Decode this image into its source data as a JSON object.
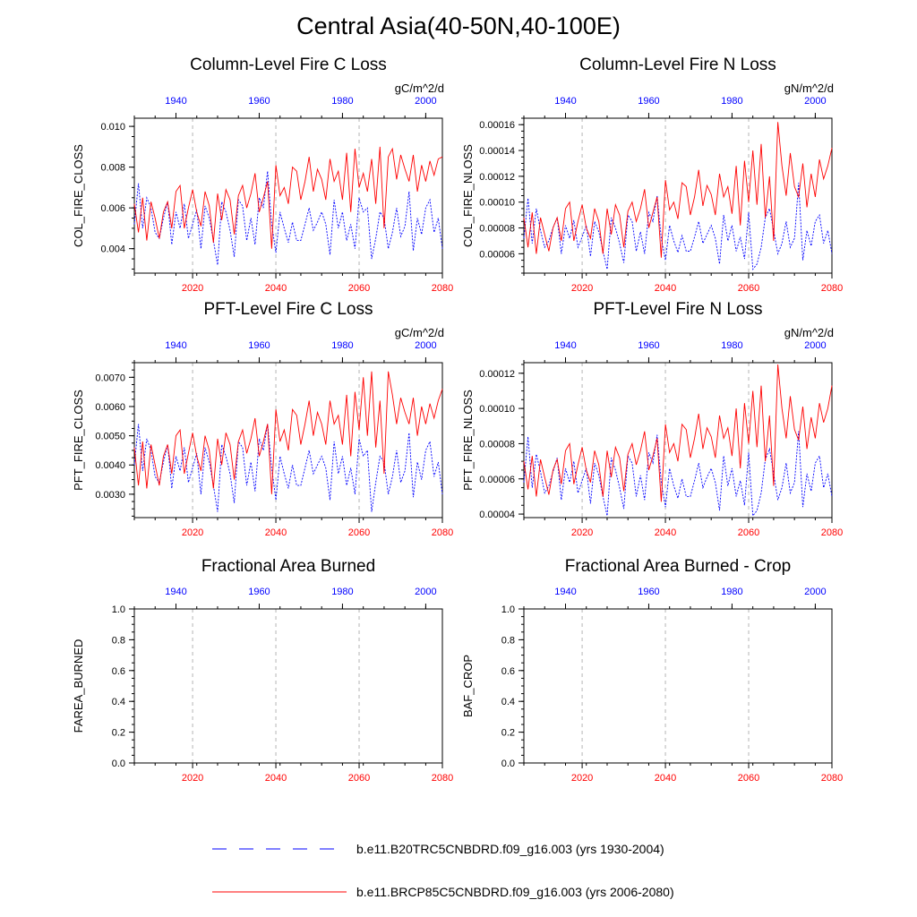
{
  "title": "Central Asia(40-50N,40-100E)",
  "colors": {
    "historical": "#0000ff",
    "future": "#ff0000",
    "grid": "#b4b4b4",
    "axis": "#000000"
  },
  "legend": [
    {
      "label": "b.e11.B20TRC5CNBDRD.f09_g16.003 (yrs 1930-2004)",
      "color": "#0000ff",
      "style": "dashed"
    },
    {
      "label": "b.e11.BRCP85C5CNBDRD.f09_g16.003 (yrs 2006-2080)",
      "color": "#ff0000",
      "style": "solid"
    }
  ],
  "chart_data": [
    {
      "type": "line",
      "title": "Column-Level Fire C Loss",
      "ylabel": "COL_FIRE_CLOSS",
      "units": "gC/m^2/d",
      "ylim": [
        0.0028,
        0.0104
      ],
      "yticks": [
        0.004,
        0.006,
        0.008,
        0.01
      ],
      "ytick_labels": [
        "0.004",
        "0.006",
        "0.008",
        "0.010"
      ],
      "x_bottom": {
        "range": [
          2006,
          2080
        ],
        "ticks": [
          2020,
          2040,
          2060,
          2080
        ]
      },
      "x_top": {
        "range": [
          1930,
          2004
        ],
        "ticks": [
          1940,
          1960,
          1980,
          2000
        ]
      },
      "series": [
        {
          "name": "b.e11.B20TRC5CNBDRD.f09_g16.003",
          "color": "#0000ff",
          "style": "dashed",
          "values": [
            0.0052,
            0.0072,
            0.005,
            0.0065,
            0.006,
            0.0048,
            0.0045,
            0.0055,
            0.0063,
            0.0042,
            0.0058,
            0.005,
            0.0062,
            0.0045,
            0.0052,
            0.0059,
            0.004,
            0.0061,
            0.0055,
            0.0044,
            0.0032,
            0.0063,
            0.0058,
            0.0049,
            0.0036,
            0.0064,
            0.0061,
            0.0044,
            0.0055,
            0.0042,
            0.0065,
            0.006,
            0.0078,
            0.0052,
            0.0038,
            0.0058,
            0.005,
            0.0043,
            0.0053,
            0.0044,
            0.0044,
            0.0052,
            0.006,
            0.0049,
            0.0053,
            0.0058,
            0.0052,
            0.0037,
            0.0064,
            0.005,
            0.0058,
            0.0044,
            0.0052,
            0.004,
            0.0065,
            0.0058,
            0.006,
            0.0035,
            0.0045,
            0.0058,
            0.0055,
            0.004,
            0.0048,
            0.006,
            0.0046,
            0.0051,
            0.0068,
            0.0039,
            0.0055,
            0.0047,
            0.006,
            0.0064,
            0.0048,
            0.0055,
            0.004
          ]
        },
        {
          "name": "b.e11.BRCP85C5CNBDRD.f09_g16.003",
          "color": "#ff0000",
          "style": "solid",
          "values": [
            0.0062,
            0.0048,
            0.0065,
            0.0044,
            0.0063,
            0.0055,
            0.0045,
            0.0058,
            0.0063,
            0.005,
            0.0068,
            0.0071,
            0.005,
            0.006,
            0.0069,
            0.0058,
            0.0051,
            0.0068,
            0.0061,
            0.0043,
            0.0067,
            0.0054,
            0.0069,
            0.0064,
            0.0047,
            0.0066,
            0.0071,
            0.006,
            0.0067,
            0.0077,
            0.0058,
            0.0065,
            0.0073,
            0.004,
            0.0081,
            0.0066,
            0.007,
            0.0062,
            0.008,
            0.0078,
            0.0064,
            0.0073,
            0.0085,
            0.0068,
            0.0079,
            0.0074,
            0.0064,
            0.0084,
            0.0073,
            0.0078,
            0.0064,
            0.0087,
            0.0058,
            0.0089,
            0.007,
            0.0077,
            0.0068,
            0.0084,
            0.0062,
            0.009,
            0.005,
            0.0085,
            0.0089,
            0.0074,
            0.0086,
            0.0079,
            0.0073,
            0.0086,
            0.0068,
            0.0081,
            0.0073,
            0.0083,
            0.0076,
            0.0084,
            0.0085
          ]
        }
      ]
    },
    {
      "type": "line",
      "title": "Column-Level Fire N Loss",
      "ylabel": "COL_FIRE_NLOSS",
      "units": "gN/m^2/d",
      "ylim": [
        4.5e-05,
        0.000165
      ],
      "yticks": [
        6e-05,
        8e-05,
        0.0001,
        0.00012,
        0.00014,
        0.00016
      ],
      "ytick_labels": [
        "0.00006",
        "0.00008",
        "0.00010",
        "0.00012",
        "0.00014",
        "0.00016"
      ],
      "x_bottom": {
        "range": [
          2006,
          2080
        ],
        "ticks": [
          2020,
          2040,
          2060,
          2080
        ]
      },
      "x_top": {
        "range": [
          1930,
          2004
        ],
        "ticks": [
          1940,
          1960,
          1980,
          2000
        ]
      },
      "series": [
        {
          "name": "b.e11.B20TRC5CNBDRD.f09_g16.003",
          "color": "#0000ff",
          "style": "dashed",
          "values": [
            7.2e-05,
            0.000103,
            6.8e-05,
            9.5e-05,
            7.8e-05,
            6.5e-05,
            7e-05,
            8e-05,
            8.8e-05,
            6e-05,
            8.2e-05,
            7.2e-05,
            8.6e-05,
            6.5e-05,
            7.3e-05,
            8.2e-05,
            5.8e-05,
            8.5e-05,
            7.7e-05,
            6.2e-05,
            4.8e-05,
            8.8e-05,
            8e-05,
            6.8e-05,
            5.3e-05,
            9e-05,
            8.5e-05,
            6.2e-05,
            7.7e-05,
            6e-05,
            9.2e-05,
            8.5e-05,
            0.000105,
            7.2e-05,
            5.5e-05,
            8.2e-05,
            7e-05,
            6.1e-05,
            7.4e-05,
            6.2e-05,
            6.2e-05,
            7.3e-05,
            8.5e-05,
            6.8e-05,
            7.5e-05,
            8.2e-05,
            7.2e-05,
            5.2e-05,
            9e-05,
            7e-05,
            8.2e-05,
            6.2e-05,
            7.3e-05,
            5.6e-05,
            9.2e-05,
            4.8e-05,
            5.2e-05,
            6.5e-05,
            8.8e-05,
            9.5e-05,
            7.8e-05,
            6e-05,
            6.8e-05,
            8.5e-05,
            6.5e-05,
            7.2e-05,
            0.000115,
            5.5e-05,
            7.8e-05,
            6.6e-05,
            8.5e-05,
            9e-05,
            6.8e-05,
            7.8e-05,
            6e-05
          ]
        },
        {
          "name": "b.e11.BRCP85C5CNBDRD.f09_g16.003",
          "color": "#ff0000",
          "style": "solid",
          "values": [
            8.8e-05,
            6.5e-05,
            9.2e-05,
            6e-05,
            8.8e-05,
            7.5e-05,
            6.2e-05,
            8e-05,
            8.8e-05,
            7e-05,
            9.5e-05,
            0.0001,
            7e-05,
            8.5e-05,
            9.8e-05,
            8e-05,
            7.2e-05,
            9.5e-05,
            8.5e-05,
            6e-05,
            9.5e-05,
            7.5e-05,
            9.8e-05,
            9e-05,
            6.5e-05,
            9.3e-05,
            0.0001,
            8.5e-05,
            9.5e-05,
            0.00011,
            8e-05,
            9.2e-05,
            0.000104,
            5.7e-05,
            0.000117,
            9.4e-05,
            0.0001,
            8.7e-05,
            0.000115,
            0.000112,
            9e-05,
            0.000104,
            0.000125,
            9.7e-05,
            0.000113,
            0.000106,
            9e-05,
            0.000122,
            0.000104,
            0.000112,
            9.1e-05,
            0.000128,
            8.2e-05,
            0.000132,
            0.0001,
            0.00014,
            9.8e-05,
            0.000145,
            8.8e-05,
            0.00012,
            7e-05,
            0.000162,
            0.000128,
            0.000105,
            0.000138,
            0.000112,
            0.000104,
            0.00013,
            9.6e-05,
            0.000122,
            0.000104,
            0.000133,
            0.000118,
            0.000128,
            0.000142
          ]
        }
      ]
    },
    {
      "type": "line",
      "title": "PFT-Level Fire C Loss",
      "ylabel": "PFT_FIRE_CLOSS",
      "units": "gC/m^2/d",
      "ylim": [
        0.0022,
        0.0075
      ],
      "yticks": [
        0.003,
        0.004,
        0.005,
        0.006,
        0.007
      ],
      "ytick_labels": [
        "0.0030",
        "0.0040",
        "0.0050",
        "0.0060",
        "0.0070"
      ],
      "x_bottom": {
        "range": [
          2006,
          2080
        ],
        "ticks": [
          2020,
          2040,
          2060,
          2080
        ]
      },
      "x_top": {
        "range": [
          1930,
          2004
        ],
        "ticks": [
          1940,
          1960,
          1980,
          2000
        ]
      },
      "series": [
        {
          "name": "b.e11.B20TRC5CNBDRD.f09_g16.003",
          "color": "#0000ff",
          "style": "dashed",
          "values": [
            0.004,
            0.0054,
            0.0038,
            0.0049,
            0.0045,
            0.0036,
            0.0034,
            0.0041,
            0.0047,
            0.0032,
            0.0043,
            0.0038,
            0.0046,
            0.0034,
            0.0039,
            0.0044,
            0.003,
            0.0046,
            0.0041,
            0.0033,
            0.0024,
            0.0047,
            0.0043,
            0.0037,
            0.0027,
            0.0048,
            0.0046,
            0.0033,
            0.0041,
            0.0031,
            0.0049,
            0.0045,
            0.0054,
            0.0039,
            0.0028,
            0.0043,
            0.0037,
            0.0032,
            0.004,
            0.0033,
            0.0033,
            0.0039,
            0.0045,
            0.0037,
            0.004,
            0.0043,
            0.0039,
            0.0028,
            0.0048,
            0.0037,
            0.0043,
            0.0033,
            0.0039,
            0.003,
            0.0049,
            0.0043,
            0.0045,
            0.0024,
            0.0034,
            0.0043,
            0.0041,
            0.003,
            0.0036,
            0.0045,
            0.0034,
            0.0038,
            0.0051,
            0.0029,
            0.0041,
            0.0035,
            0.0045,
            0.0048,
            0.0036,
            0.0041,
            0.003
          ]
        },
        {
          "name": "b.e11.BRCP85C5CNBDRD.f09_g16.003",
          "color": "#ff0000",
          "style": "solid",
          "values": [
            0.0046,
            0.0033,
            0.0048,
            0.0032,
            0.0047,
            0.004,
            0.0033,
            0.0043,
            0.0047,
            0.0037,
            0.005,
            0.0052,
            0.0037,
            0.0044,
            0.0051,
            0.0043,
            0.0038,
            0.005,
            0.0045,
            0.0032,
            0.0049,
            0.004,
            0.0051,
            0.0047,
            0.0035,
            0.0048,
            0.0052,
            0.0044,
            0.0049,
            0.0056,
            0.0043,
            0.0048,
            0.0054,
            0.003,
            0.0059,
            0.0048,
            0.0052,
            0.0045,
            0.0059,
            0.0057,
            0.0047,
            0.0054,
            0.0062,
            0.005,
            0.0058,
            0.0054,
            0.0047,
            0.0062,
            0.0054,
            0.0057,
            0.0047,
            0.0064,
            0.0043,
            0.0065,
            0.0052,
            0.007,
            0.005,
            0.0072,
            0.0046,
            0.0062,
            0.0037,
            0.0072,
            0.0064,
            0.0054,
            0.0063,
            0.0058,
            0.0054,
            0.0063,
            0.005,
            0.006,
            0.0054,
            0.0061,
            0.0056,
            0.0062,
            0.0066
          ]
        }
      ]
    },
    {
      "type": "line",
      "title": "PFT-Level Fire N Loss",
      "ylabel": "PFT_FIRE_NLOSS",
      "units": "gN/m^2/d",
      "ylim": [
        3.8e-05,
        0.000126
      ],
      "yticks": [
        4e-05,
        6e-05,
        8e-05,
        0.0001,
        0.00012
      ],
      "ytick_labels": [
        "0.00004",
        "0.00006",
        "0.00008",
        "0.00010",
        "0.00012"
      ],
      "x_bottom": {
        "range": [
          2006,
          2080
        ],
        "ticks": [
          2020,
          2040,
          2060,
          2080
        ]
      },
      "x_top": {
        "range": [
          1930,
          2004
        ],
        "ticks": [
          1940,
          1960,
          1980,
          2000
        ]
      },
      "series": [
        {
          "name": "b.e11.B20TRC5CNBDRD.f09_g16.003",
          "color": "#0000ff",
          "style": "dashed",
          "values": [
            5.8e-05,
            8.4e-05,
            5.5e-05,
            7.4e-05,
            6.4e-05,
            5.2e-05,
            5.6e-05,
            6.4e-05,
            7.2e-05,
            4.8e-05,
            6.6e-05,
            5.8e-05,
            7e-05,
            5.2e-05,
            5.9e-05,
            6.6e-05,
            4.6e-05,
            6.9e-05,
            6.2e-05,
            5e-05,
            3.9e-05,
            7.2e-05,
            6.5e-05,
            5.5e-05,
            4.3e-05,
            7.3e-05,
            6.9e-05,
            5e-05,
            6.2e-05,
            4.8e-05,
            7.5e-05,
            6.9e-05,
            8.5e-05,
            5.8e-05,
            4.4e-05,
            6.6e-05,
            5.6e-05,
            4.9e-05,
            6e-05,
            5e-05,
            5e-05,
            5.9e-05,
            6.9e-05,
            5.5e-05,
            6.1e-05,
            6.6e-05,
            5.8e-05,
            4.2e-05,
            7.3e-05,
            5.6e-05,
            6.6e-05,
            5e-05,
            5.9e-05,
            4.5e-05,
            7.5e-05,
            3.9e-05,
            4.2e-05,
            5.2e-05,
            7.1e-05,
            7.7e-05,
            6.3e-05,
            4.8e-05,
            5.5e-05,
            6.9e-05,
            5.2e-05,
            5.8e-05,
            8.7e-05,
            4.4e-05,
            6.3e-05,
            5.3e-05,
            6.9e-05,
            7.3e-05,
            5.5e-05,
            6.3e-05,
            5e-05
          ]
        },
        {
          "name": "b.e11.BRCP85C5CNBDRD.f09_g16.003",
          "color": "#ff0000",
          "style": "solid",
          "values": [
            7e-05,
            5.4e-05,
            7.3e-05,
            5e-05,
            7.1e-05,
            6.1e-05,
            5.1e-05,
            6.5e-05,
            7.1e-05,
            5.7e-05,
            7.6e-05,
            8e-05,
            5.7e-05,
            6.8e-05,
            7.8e-05,
            6.5e-05,
            5.8e-05,
            7.6e-05,
            6.8e-05,
            5e-05,
            7.6e-05,
            6.1e-05,
            7.8e-05,
            7.2e-05,
            5.3e-05,
            7.4e-05,
            8e-05,
            6.8e-05,
            7.6e-05,
            8.7e-05,
            6.5e-05,
            7.3e-05,
            8.3e-05,
            4.7e-05,
            9.1e-05,
            7.5e-05,
            8e-05,
            7e-05,
            9.1e-05,
            8.8e-05,
            7.2e-05,
            8.3e-05,
            9.7e-05,
            7.7e-05,
            8.9e-05,
            8.4e-05,
            7.2e-05,
            9.6e-05,
            8.3e-05,
            8.9e-05,
            7.3e-05,
            0.0001,
            6.6e-05,
            0.000103,
            8e-05,
            0.00011,
            7.8e-05,
            0.000113,
            7e-05,
            9.6e-05,
            5.6e-05,
            0.000125,
            0.0001,
            8.3e-05,
            0.000107,
            8.8e-05,
            8.2e-05,
            0.000101,
            7.7e-05,
            9.5e-05,
            8.3e-05,
            0.000103,
            9.2e-05,
            0.0001,
            0.000113
          ]
        }
      ]
    },
    {
      "type": "line",
      "title": "Fractional Area Burned",
      "ylabel": "FAREA_BURNED",
      "units": "",
      "ylim": [
        0.0,
        1.0
      ],
      "yticks": [
        0.0,
        0.2,
        0.4,
        0.6,
        0.8,
        1.0
      ],
      "ytick_labels": [
        "0.0",
        "0.2",
        "0.4",
        "0.6",
        "0.8",
        "1.0"
      ],
      "x_bottom": {
        "range": [
          2006,
          2080
        ],
        "ticks": [
          2020,
          2040,
          2060,
          2080
        ]
      },
      "x_top": {
        "range": [
          1930,
          2004
        ],
        "ticks": [
          1940,
          1960,
          1980,
          2000
        ]
      },
      "series": []
    },
    {
      "type": "line",
      "title": "Fractional Area Burned - Crop",
      "ylabel": "BAF_CROP",
      "units": "",
      "ylim": [
        0.0,
        1.0
      ],
      "yticks": [
        0.0,
        0.2,
        0.4,
        0.6,
        0.8,
        1.0
      ],
      "ytick_labels": [
        "0.0",
        "0.2",
        "0.4",
        "0.6",
        "0.8",
        "1.0"
      ],
      "x_bottom": {
        "range": [
          2006,
          2080
        ],
        "ticks": [
          2020,
          2040,
          2060,
          2080
        ]
      },
      "x_top": {
        "range": [
          1930,
          2004
        ],
        "ticks": [
          1940,
          1960,
          1980,
          2000
        ]
      },
      "series": []
    }
  ]
}
